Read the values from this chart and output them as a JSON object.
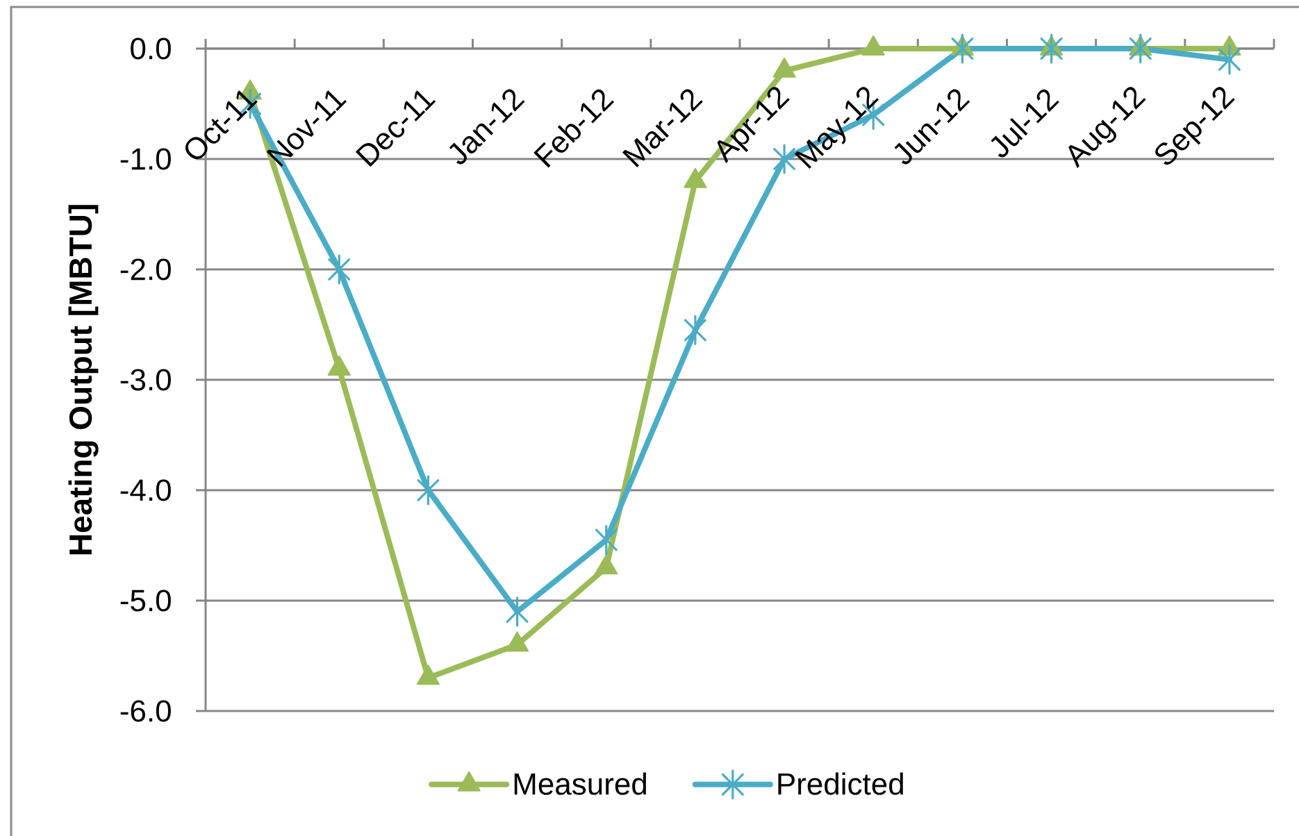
{
  "chart_data": {
    "type": "line",
    "ylabel": "Heating Output [MBTU]",
    "categories": [
      "Oct-11",
      "Nov-11",
      "Dec-11",
      "Jan-12",
      "Feb-12",
      "Mar-12",
      "Apr-12",
      "May-12",
      "Jun-12",
      "Jul-12",
      "Aug-12",
      "Sep-12"
    ],
    "series": [
      {
        "name": "Measured",
        "color": "#9bbb59",
        "marker": "triangle",
        "values": [
          -0.4,
          -2.9,
          -5.7,
          -5.4,
          -4.7,
          -1.2,
          -0.2,
          0.0,
          0.0,
          0.0,
          0.0,
          0.0
        ]
      },
      {
        "name": "Predicted",
        "color": "#4bacc6",
        "marker": "cross",
        "values": [
          -0.5,
          -2.0,
          -4.0,
          -5.1,
          -4.45,
          -2.55,
          -1.0,
          -0.6,
          0.0,
          0.0,
          0.0,
          -0.1
        ]
      }
    ],
    "ylim": [
      -6,
      0
    ],
    "yticks": [
      {
        "value": -6,
        "label": "-6.0"
      },
      {
        "value": -5,
        "label": "-5.0"
      },
      {
        "value": -4,
        "label": "-4.0"
      },
      {
        "value": -3,
        "label": "-3.0"
      },
      {
        "value": -2,
        "label": "-2.0"
      },
      {
        "value": -1,
        "label": "-1.0"
      },
      {
        "value": 0,
        "label": "0.0"
      }
    ],
    "grid": "y",
    "legend": "bottom",
    "line_style": "solid"
  }
}
